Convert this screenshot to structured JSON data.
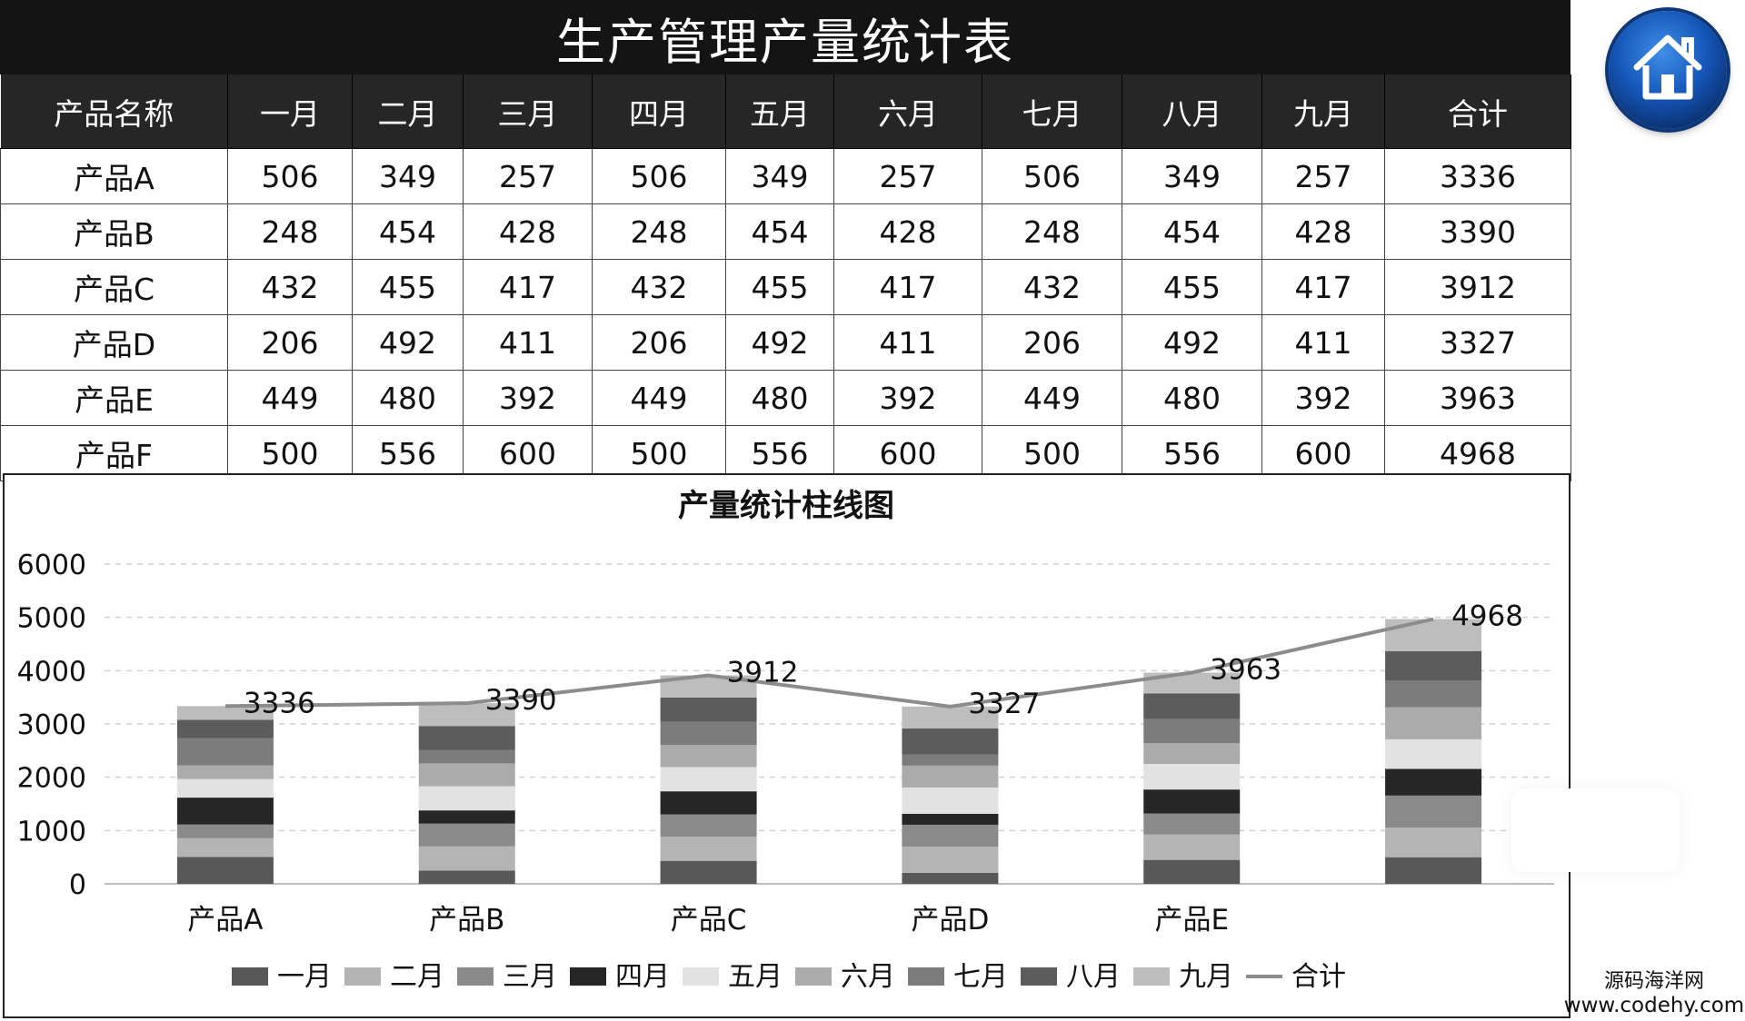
{
  "title": "生产管理产量统计表",
  "table": {
    "headers": [
      "产品名称",
      "一月",
      "二月",
      "三月",
      "四月",
      "五月",
      "六月",
      "七月",
      "八月",
      "九月",
      "合计"
    ],
    "rows": [
      [
        "产品A",
        "506",
        "349",
        "257",
        "506",
        "349",
        "257",
        "506",
        "349",
        "257",
        "3336"
      ],
      [
        "产品B",
        "248",
        "454",
        "428",
        "248",
        "454",
        "428",
        "248",
        "454",
        "428",
        "3390"
      ],
      [
        "产品C",
        "432",
        "455",
        "417",
        "432",
        "455",
        "417",
        "432",
        "455",
        "417",
        "3912"
      ],
      [
        "产品D",
        "206",
        "492",
        "411",
        "206",
        "492",
        "411",
        "206",
        "492",
        "411",
        "3327"
      ],
      [
        "产品E",
        "449",
        "480",
        "392",
        "449",
        "480",
        "392",
        "449",
        "480",
        "392",
        "3963"
      ],
      [
        "产品F",
        "500",
        "556",
        "600",
        "500",
        "556",
        "600",
        "500",
        "556",
        "600",
        "4968"
      ]
    ]
  },
  "home_button": {
    "icon": "home-icon"
  },
  "watermark": {
    "site_name": "源码海洋网",
    "url": "www.codehy.com"
  },
  "chart_data": {
    "type": "bar",
    "stacked": true,
    "title": "产量统计柱线图",
    "categories": [
      "产品A",
      "产品B",
      "产品C",
      "产品D",
      "产品E",
      ""
    ],
    "ylim": [
      0,
      6000
    ],
    "yticks": [
      0,
      1000,
      2000,
      3000,
      4000,
      5000,
      6000
    ],
    "grid": true,
    "legend_position": "bottom",
    "series": [
      {
        "name": "一月",
        "color": "#585858",
        "values": [
          506,
          248,
          432,
          206,
          449,
          500
        ]
      },
      {
        "name": "二月",
        "color": "#b4b4b4",
        "values": [
          349,
          454,
          455,
          492,
          480,
          556
        ]
      },
      {
        "name": "三月",
        "color": "#8a8a8a",
        "values": [
          257,
          428,
          417,
          411,
          392,
          600
        ]
      },
      {
        "name": "四月",
        "color": "#262626",
        "values": [
          506,
          248,
          432,
          206,
          449,
          500
        ]
      },
      {
        "name": "五月",
        "color": "#e2e2e2",
        "values": [
          349,
          454,
          455,
          492,
          480,
          556
        ]
      },
      {
        "name": "六月",
        "color": "#ababab",
        "values": [
          257,
          428,
          417,
          411,
          392,
          600
        ]
      },
      {
        "name": "七月",
        "color": "#7c7c7c",
        "values": [
          506,
          248,
          432,
          206,
          449,
          500
        ]
      },
      {
        "name": "八月",
        "color": "#5c5c5c",
        "values": [
          349,
          454,
          455,
          492,
          480,
          556
        ]
      },
      {
        "name": "九月",
        "color": "#bdbdbd",
        "values": [
          257,
          428,
          417,
          411,
          392,
          600
        ]
      }
    ],
    "line_series": {
      "name": "合计",
      "color": "#8c8c8c",
      "values": [
        3336,
        3390,
        3912,
        3327,
        3963,
        4968
      ]
    }
  }
}
